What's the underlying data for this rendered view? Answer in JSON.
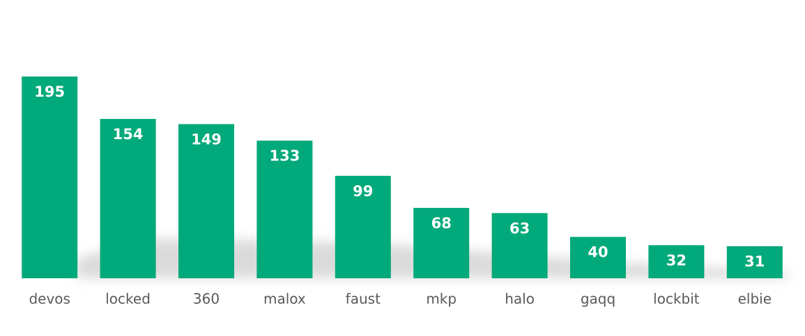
{
  "chart_data": {
    "type": "bar",
    "categories": [
      "devos",
      "locked",
      "360",
      "malox",
      "faust",
      "mkp",
      "halo",
      "gaqq",
      "lockbit",
      "elbie"
    ],
    "values": [
      195,
      154,
      149,
      133,
      99,
      68,
      63,
      40,
      32,
      31
    ],
    "color": "#02a97a"
  }
}
